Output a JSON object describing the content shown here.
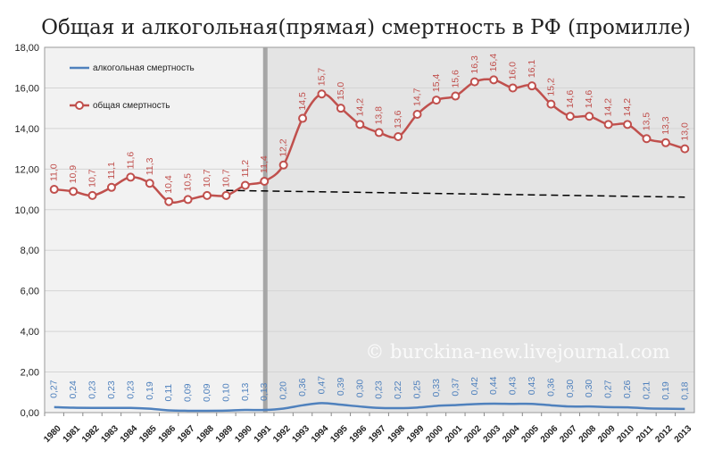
{
  "chart_data": {
    "type": "line",
    "title": "Общая и алкогольная(прямая) смертность в РФ (промилле)",
    "categories": [
      "1980",
      "1981",
      "1982",
      "1983",
      "1984",
      "1985",
      "1986",
      "1987",
      "1988",
      "1989",
      "1990",
      "1991",
      "1992",
      "1993",
      "1994",
      "1995",
      "1996",
      "1997",
      "1998",
      "1999",
      "2000",
      "2001",
      "2002",
      "2003",
      "2004",
      "2005",
      "2006",
      "2007",
      "2008",
      "2009",
      "2010",
      "2011",
      "2012",
      "2013"
    ],
    "ylim": [
      0,
      18
    ],
    "yticks": [
      "0,00",
      "2,00",
      "4,00",
      "6,00",
      "8,00",
      "10,00",
      "12,00",
      "14,00",
      "16,00",
      "18,00"
    ],
    "grid": true,
    "legend_position": "top-left",
    "series": [
      {
        "name": "алкогольная смертность",
        "color": "#4f81bd",
        "values": [
          0.27,
          0.24,
          0.23,
          0.23,
          0.23,
          0.19,
          0.11,
          0.09,
          0.09,
          0.1,
          0.13,
          0.13,
          0.2,
          0.36,
          0.47,
          0.39,
          0.3,
          0.23,
          0.22,
          0.25,
          0.33,
          0.37,
          0.42,
          0.44,
          0.43,
          0.43,
          0.36,
          0.3,
          0.3,
          0.27,
          0.26,
          0.21,
          0.19,
          0.18
        ],
        "labels": [
          "0,27",
          "0,24",
          "0,23",
          "0,23",
          "0,23",
          "0,19",
          "0,11",
          "0,09",
          "0,09",
          "0,10",
          "0,13",
          "0,13",
          "0,20",
          "0,36",
          "0,47",
          "0,39",
          "0,30",
          "0,23",
          "0,22",
          "0,25",
          "0,33",
          "0,37",
          "0,42",
          "0,44",
          "0,43",
          "0,43",
          "0,36",
          "0,30",
          "0,30",
          "0,27",
          "0,26",
          "0,21",
          "0,19",
          "0,18"
        ]
      },
      {
        "name": "общая смертность",
        "color": "#c0504d",
        "values": [
          11.0,
          10.9,
          10.7,
          11.1,
          11.6,
          11.3,
          10.4,
          10.5,
          10.7,
          10.7,
          11.2,
          11.4,
          12.2,
          14.5,
          15.7,
          15.0,
          14.2,
          13.8,
          13.6,
          14.7,
          15.4,
          15.6,
          16.3,
          16.4,
          16.0,
          16.1,
          15.2,
          14.6,
          14.6,
          14.2,
          14.2,
          13.5,
          13.3,
          13.0
        ],
        "labels": [
          "11,0",
          "10,9",
          "10,7",
          "11,1",
          "11,6",
          "11,3",
          "10,4",
          "10,5",
          "10,7",
          "10,7",
          "11,2",
          "11,4",
          "12,2",
          "14,5",
          "15,7",
          "15,0",
          "14,2",
          "13,8",
          "13,6",
          "14,7",
          "15,4",
          "15,6",
          "16,3",
          "16,4",
          "16,0",
          "16,1",
          "15,2",
          "14,6",
          "14,6",
          "14,2",
          "14,2",
          "13,5",
          "13,3",
          "13,0"
        ]
      }
    ],
    "trend_line": {
      "style": "dashed",
      "color": "#000000",
      "from_year": "1989",
      "to_year": "2013",
      "start_value": 10.95,
      "end_value": 10.62
    },
    "shaded_regions": [
      {
        "from_year": "1980",
        "to_year": "1991",
        "color": "#f2f2f2"
      },
      {
        "from_year": "1991",
        "to_year": "2013",
        "color": "#e4e4e4"
      }
    ],
    "divider_year": "1991",
    "watermark": "© burckina-new.livejournal.com"
  }
}
